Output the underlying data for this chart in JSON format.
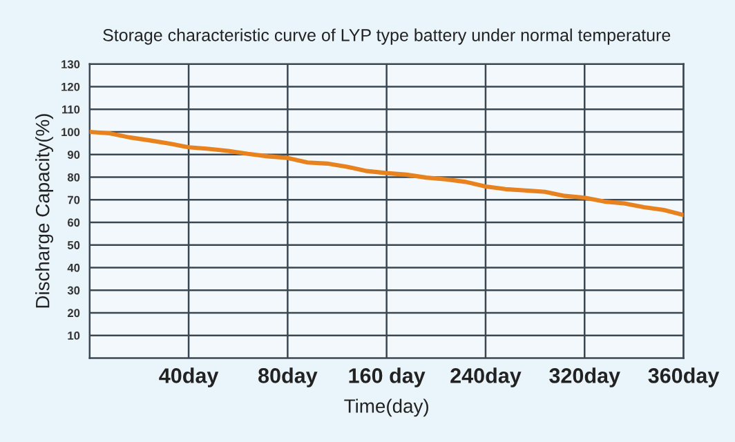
{
  "chart_data": {
    "type": "line",
    "title": "Storage characteristic curve of LYP type battery under normal temperature",
    "xlabel": "Time(day)",
    "ylabel": "Discharge Capacity(%)",
    "categories": [
      null,
      null,
      null,
      null,
      null,
      "40day",
      null,
      null,
      null,
      null,
      "80day",
      null,
      null,
      null,
      null,
      "160 day",
      null,
      null,
      null,
      null,
      "240day",
      null,
      null,
      null,
      null,
      "320day",
      null,
      null,
      null,
      null,
      "360day"
    ],
    "series": [
      {
        "color": "#e8821e",
        "values": [
          100,
          99.4,
          97.6,
          96.3,
          94.9,
          93.2,
          92.5,
          91.6,
          90.3,
          89.2,
          88.5,
          86.5,
          86,
          84.6,
          82.7,
          81.8,
          81.1,
          79.8,
          79,
          77.9,
          75.9,
          74.7,
          74.1,
          73.5,
          71.7,
          70.9,
          69.2,
          68.4,
          66.7,
          65.5,
          63.3
        ]
      }
    ],
    "ylim": [
      0,
      130
    ],
    "yticks": [
      10,
      20,
      30,
      40,
      50,
      60,
      70,
      80,
      90,
      100,
      110,
      120,
      130
    ],
    "grid": true,
    "marker": "none",
    "line_style": "solid"
  }
}
